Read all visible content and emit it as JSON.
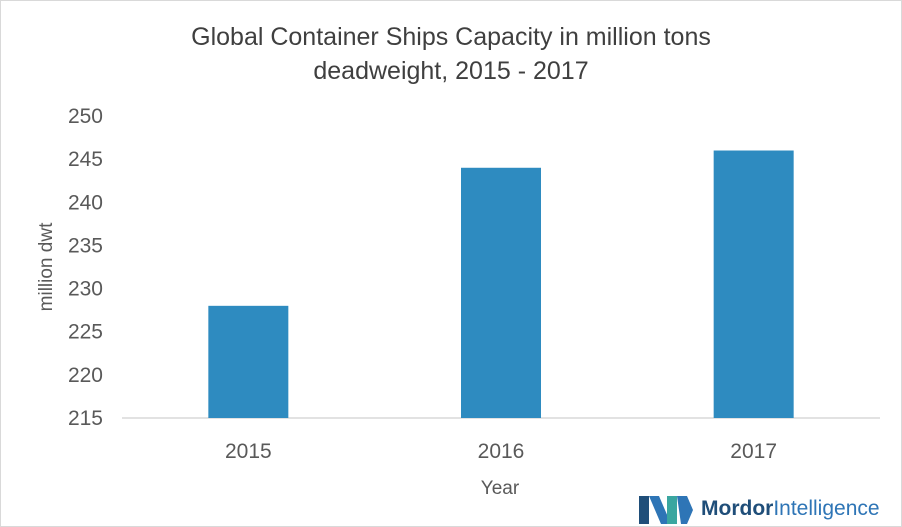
{
  "chart_data": {
    "type": "bar",
    "title_lines": [
      "Global Container Ships Capacity in million tons",
      "deadweight, 2015 - 2017"
    ],
    "categories": [
      "2015",
      "2016",
      "2017"
    ],
    "values": [
      228,
      244,
      246
    ],
    "xlabel": "Year",
    "ylabel": "million dwt",
    "ylim": [
      215,
      250
    ],
    "yticks": [
      "215",
      "220",
      "225",
      "230",
      "235",
      "240",
      "245",
      "250"
    ],
    "grid": false,
    "bar_color": "#2e8bc0"
  },
  "branding": {
    "name_bold": "Mordor",
    "name_light": "Intelligence",
    "colors": {
      "dark": "#1f4e79",
      "light": "#2e75b6",
      "teal": "#3aa6a0"
    }
  }
}
